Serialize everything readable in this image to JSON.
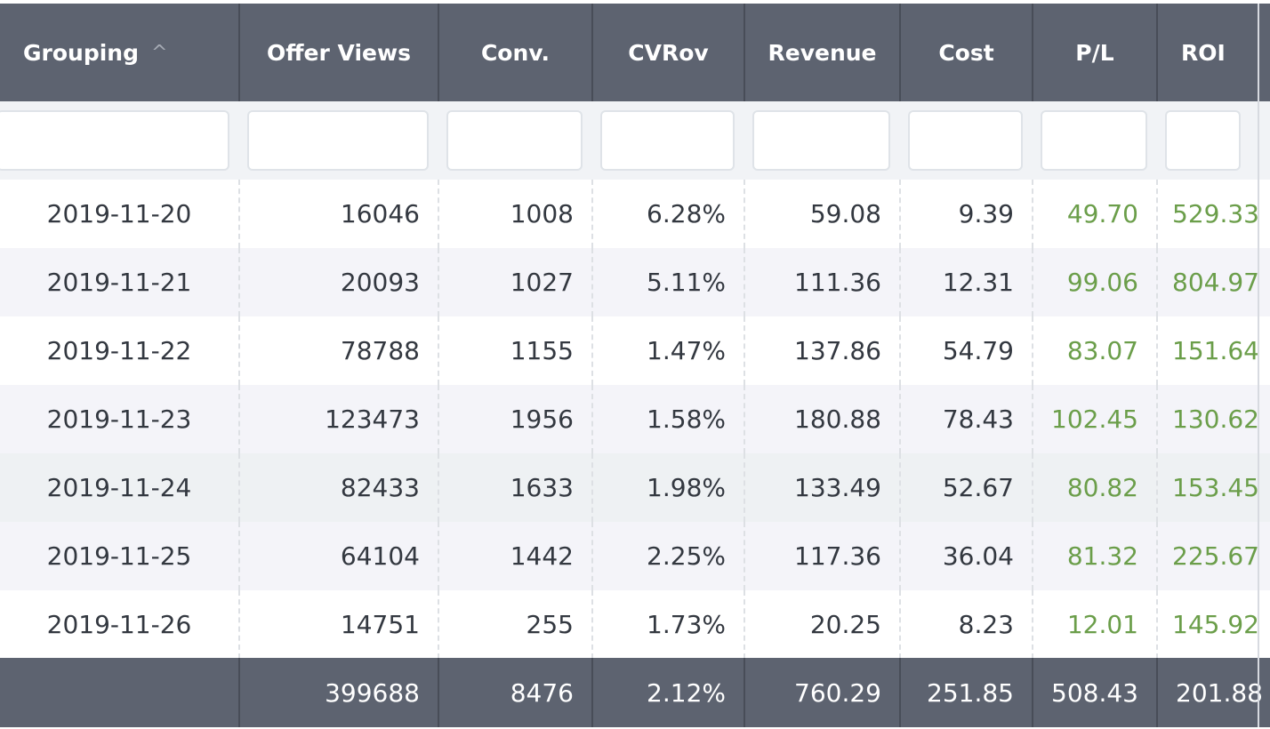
{
  "table": {
    "columns": [
      {
        "key": "grouping",
        "label": "Grouping"
      },
      {
        "key": "offer_views",
        "label": "Offer Views"
      },
      {
        "key": "conv",
        "label": "Conv."
      },
      {
        "key": "cvrov",
        "label": "CVRov"
      },
      {
        "key": "revenue",
        "label": "Revenue"
      },
      {
        "key": "cost",
        "label": "Cost"
      },
      {
        "key": "pl",
        "label": "P/L"
      },
      {
        "key": "roi",
        "label": "ROI"
      }
    ],
    "sort": {
      "column": "grouping",
      "direction": "ascending",
      "indicator": "^"
    },
    "rows": [
      [
        "2019-11-20",
        "16046",
        "1008",
        "6.28%",
        "59.08",
        "9.39",
        "49.70",
        "529.33"
      ],
      [
        "2019-11-21",
        "20093",
        "1027",
        "5.11%",
        "111.36",
        "12.31",
        "99.06",
        "804.97"
      ],
      [
        "2019-11-22",
        "78788",
        "1155",
        "1.47%",
        "137.86",
        "54.79",
        "83.07",
        "151.64"
      ],
      [
        "2019-11-23",
        "123473",
        "1956",
        "1.58%",
        "180.88",
        "78.43",
        "102.45",
        "130.62"
      ],
      [
        "2019-11-24",
        "82433",
        "1633",
        "1.98%",
        "133.49",
        "52.67",
        "80.82",
        "153.45"
      ],
      [
        "2019-11-25",
        "64104",
        "1442",
        "2.25%",
        "117.36",
        "36.04",
        "81.32",
        "225.67"
      ],
      [
        "2019-11-26",
        "14751",
        "255",
        "1.73%",
        "20.25",
        "8.23",
        "12.01",
        "145.92"
      ]
    ],
    "totals": [
      "",
      "399688",
      "8476",
      "2.12%",
      "760.29",
      "251.85",
      "508.43",
      "201.88"
    ]
  },
  "colors": {
    "header_bg": "#5d6370",
    "positive_text": "#6b9e4a",
    "row_stripe": "#f4f4f9",
    "row_hover": "#eef1f3"
  }
}
